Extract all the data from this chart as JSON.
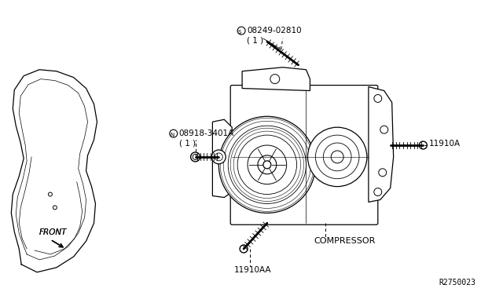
{
  "bg_color": "#ffffff",
  "line_color": "#000000",
  "fig_width": 6.4,
  "fig_height": 3.72,
  "dpi": 100,
  "labels": {
    "part1_num": "S08249-02810",
    "part1_qty": "( 1 )",
    "part2_num": "N08918-3401A",
    "part2_qty": "( 1 )",
    "compressor": "COMPRESSOR",
    "bolt1": "11910A",
    "bolt2": "11910AA",
    "front": "FRONT",
    "diagram_num": "R2750023"
  }
}
